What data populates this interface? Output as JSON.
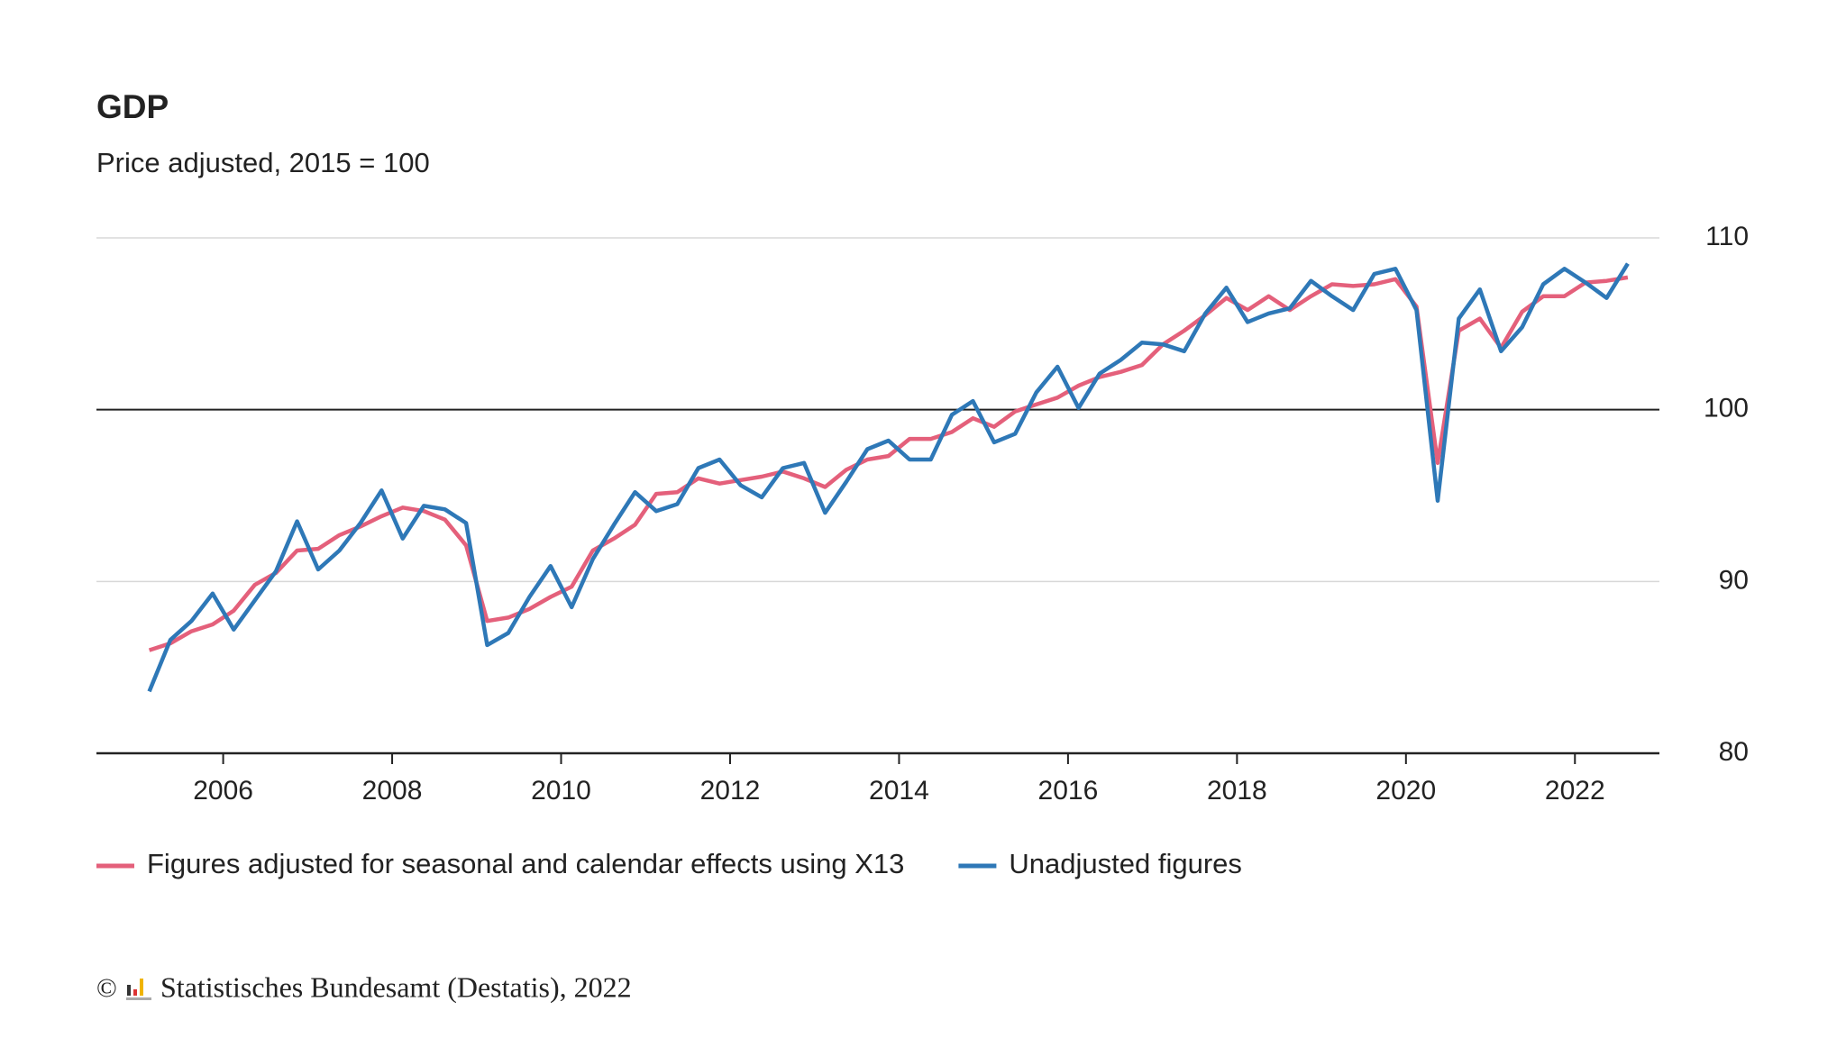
{
  "chart_data": {
    "type": "line",
    "title": "GDP",
    "subtitle": "Price adjusted, 2015 = 100",
    "x": [
      2005.125,
      2005.375,
      2005.625,
      2005.875,
      2006.125,
      2006.375,
      2006.625,
      2006.875,
      2007.125,
      2007.375,
      2007.625,
      2007.875,
      2008.125,
      2008.375,
      2008.625,
      2008.875,
      2009.125,
      2009.375,
      2009.625,
      2009.875,
      2010.125,
      2010.375,
      2010.625,
      2010.875,
      2011.125,
      2011.375,
      2011.625,
      2011.875,
      2012.125,
      2012.375,
      2012.625,
      2012.875,
      2013.125,
      2013.375,
      2013.625,
      2013.875,
      2014.125,
      2014.375,
      2014.625,
      2014.875,
      2015.125,
      2015.375,
      2015.625,
      2015.875,
      2016.125,
      2016.375,
      2016.625,
      2016.875,
      2017.125,
      2017.375,
      2017.625,
      2017.875,
      2018.125,
      2018.375,
      2018.625,
      2018.875,
      2019.125,
      2019.375,
      2019.625,
      2019.875,
      2020.125,
      2020.375,
      2020.625,
      2020.875,
      2021.125,
      2021.375,
      2021.625,
      2021.875,
      2022.125,
      2022.375,
      2022.625
    ],
    "series": [
      {
        "name": "Figures adjusted for seasonal and calendar effects using X13",
        "color": "#e4607b",
        "values": [
          86.0,
          86.4,
          87.1,
          87.5,
          88.3,
          89.8,
          90.5,
          91.8,
          91.9,
          92.7,
          93.2,
          93.8,
          94.3,
          94.1,
          93.6,
          92.1,
          87.7,
          87.9,
          88.4,
          89.1,
          89.7,
          91.8,
          92.5,
          93.3,
          95.1,
          95.2,
          96.0,
          95.7,
          95.9,
          96.1,
          96.4,
          96.0,
          95.5,
          96.5,
          97.1,
          97.3,
          98.3,
          98.3,
          98.7,
          99.5,
          99.0,
          99.9,
          100.3,
          100.7,
          101.4,
          101.9,
          102.2,
          102.6,
          103.8,
          104.6,
          105.5,
          106.5,
          105.8,
          106.6,
          105.8,
          106.6,
          107.3,
          107.2,
          107.3,
          107.6,
          106.0,
          96.9,
          104.6,
          105.3,
          103.6,
          105.7,
          106.6,
          106.6,
          107.4,
          107.5,
          107.7
        ]
      },
      {
        "name": "Unadjusted figures",
        "color": "#2e78b7",
        "values": [
          83.6,
          86.6,
          87.7,
          89.3,
          87.2,
          88.9,
          90.6,
          93.5,
          90.7,
          91.8,
          93.4,
          95.3,
          92.5,
          94.4,
          94.2,
          93.4,
          86.3,
          87.0,
          89.1,
          90.9,
          88.5,
          91.3,
          93.3,
          95.2,
          94.1,
          94.5,
          96.6,
          97.1,
          95.6,
          94.9,
          96.6,
          96.9,
          94.0,
          95.8,
          97.7,
          98.2,
          97.1,
          97.1,
          99.7,
          100.5,
          98.1,
          98.6,
          101.0,
          102.5,
          100.1,
          102.1,
          102.9,
          103.9,
          103.8,
          103.4,
          105.6,
          107.1,
          105.1,
          105.6,
          105.9,
          107.5,
          106.6,
          105.8,
          107.9,
          108.2,
          105.8,
          94.7,
          105.3,
          107.0,
          103.4,
          104.8,
          107.3,
          108.2,
          107.4,
          106.5,
          108.5
        ]
      }
    ],
    "xlim": [
      2004.5,
      2023
    ],
    "xticks": [
      2006,
      2008,
      2010,
      2012,
      2014,
      2016,
      2018,
      2020,
      2022
    ],
    "ylim": [
      80,
      110
    ],
    "yticks": [
      80,
      90,
      100,
      110
    ],
    "reference_line": 100,
    "grid": true,
    "legend": "bottom",
    "copyright_symbol": "©",
    "source": "Statistisches Bundesamt (Destatis), 2022"
  }
}
